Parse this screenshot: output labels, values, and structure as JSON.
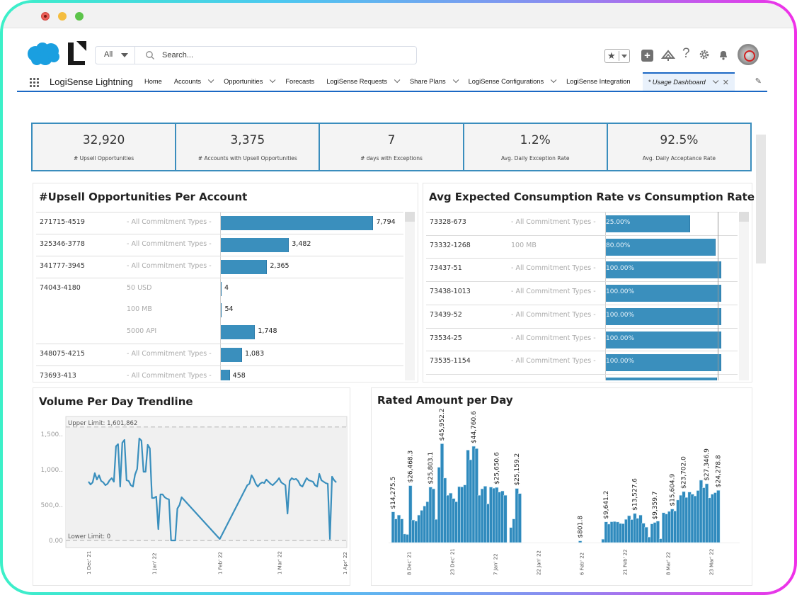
{
  "window": {
    "controls": [
      "close",
      "minimize",
      "maximize"
    ]
  },
  "header": {
    "search_scope": "All",
    "search_placeholder": "Search...",
    "utilities": [
      "favorites-star",
      "favorites-dropdown",
      "global-actions-plus",
      "trailhead",
      "help",
      "setup-gear",
      "notifications-bell",
      "user-avatar"
    ],
    "help_glyph": "?"
  },
  "nav": {
    "app_name": "LogiSense Lightning",
    "items": [
      {
        "label": "Home",
        "dropdown": false
      },
      {
        "label": "Accounts",
        "dropdown": true
      },
      {
        "label": "Opportunities",
        "dropdown": true
      },
      {
        "label": "Forecasts",
        "dropdown": false
      },
      {
        "label": "LogiSense Requests",
        "dropdown": true
      },
      {
        "label": "Share Plans",
        "dropdown": true
      },
      {
        "label": "LogiSense Configurations",
        "dropdown": true
      },
      {
        "label": "LogiSense Integration",
        "dropdown": false
      }
    ],
    "active_tab": {
      "label": "* Usage Dashboard",
      "close": "✕"
    }
  },
  "kpis": [
    {
      "value": "32,920",
      "label": "# Upsell Opportunities"
    },
    {
      "value": "3,375",
      "label": "# Accounts with Upsell Opportunities"
    },
    {
      "value": "7",
      "label": "# days with Exceptions"
    },
    {
      "value": "1.2%",
      "label": "Avg. Daily Exception Rate"
    },
    {
      "value": "92.5%",
      "label": "Avg. Daily Acceptance Rate"
    }
  ],
  "colors": {
    "accent": "#3a8fbd",
    "nav_active": "#1b68c4",
    "kpi_border": "#3a8dbd"
  },
  "chart_data": [
    {
      "type": "bar",
      "orientation": "horizontal",
      "title": "#Upsell Opportunities Per Account",
      "rows": [
        {
          "account": "271715-4519",
          "commitment": "- All Commitment Types -",
          "value": 7794,
          "label": "7,794"
        },
        {
          "account": "325346-3778",
          "commitment": "- All Commitment Types -",
          "value": 3482,
          "label": "3,482"
        },
        {
          "account": "341777-3945",
          "commitment": "- All Commitment Types -",
          "value": 2365,
          "label": "2,365"
        },
        {
          "account": "74043-4180",
          "commitment": "50 USD",
          "value": 4,
          "label": "4"
        },
        {
          "account": "",
          "commitment": "100 MB",
          "value": 54,
          "label": "54"
        },
        {
          "account": "",
          "commitment": "5000 API",
          "value": 1748,
          "label": "1,748"
        },
        {
          "account": "348075-4215",
          "commitment": "- All Commitment Types -",
          "value": 1083,
          "label": "1,083"
        },
        {
          "account": "73693-413",
          "commitment": "- All Commitment Types -",
          "value": 458,
          "label": "458"
        }
      ],
      "xlim": [
        0,
        8500
      ]
    },
    {
      "type": "bar",
      "orientation": "horizontal",
      "title": "Avg Expected Consumption Rate vs Consumption Rate",
      "rows": [
        {
          "account": "73328-673",
          "commitment": "- All Commitment Types -",
          "value": 75,
          "label": "25.00%"
        },
        {
          "account": "73332-1268",
          "commitment": "100 MB",
          "value": 98,
          "label": "80.00%"
        },
        {
          "account": "73437-51",
          "commitment": "- All Commitment Types -",
          "value": 103,
          "label": "100.00%"
        },
        {
          "account": "73438-1013",
          "commitment": "- All Commitment Types -",
          "value": 103,
          "label": "100.00%"
        },
        {
          "account": "73439-52",
          "commitment": "- All Commitment Types -",
          "value": 103,
          "label": "100.00%"
        },
        {
          "account": "73534-25",
          "commitment": "- All Commitment Types -",
          "value": 103,
          "label": "100.00%"
        },
        {
          "account": "73535-1154",
          "commitment": "- All Commitment Types -",
          "value": 103,
          "label": "100.00%"
        },
        {
          "account": "",
          "commitment": "",
          "value": 99,
          "label": ""
        }
      ],
      "reference": 100,
      "xlim": [
        0,
        105
      ]
    },
    {
      "type": "line",
      "title": "Volume Per Day Trendline",
      "y_ticks": [
        "1,500..",
        "1,000..",
        "500,0..",
        "0.00"
      ],
      "y_tick_values": [
        1500000,
        1000000,
        500000,
        0
      ],
      "x_ticks": [
        "1 Dec' 21",
        "1 Jan' 22",
        "1 Feb' 22",
        "1 Mar' 22",
        "1 Apr' 22"
      ],
      "x_tick_days": [
        0,
        31,
        62,
        90,
        121
      ],
      "upper_limit": {
        "label": "Upper Limit: 1,601,862",
        "value": 1601862
      },
      "lower_limit": {
        "label": "Lower Limit: 0",
        "value": 0
      },
      "ylim": [
        -100000,
        1750000
      ],
      "xlim": [
        -6,
        124
      ],
      "points": [
        [
          0,
          830000
        ],
        [
          1,
          790000
        ],
        [
          2,
          820000
        ],
        [
          3,
          950000
        ],
        [
          4,
          860000
        ],
        [
          5,
          920000
        ],
        [
          6,
          840000
        ],
        [
          7,
          820000
        ],
        [
          8,
          780000
        ],
        [
          9,
          800000
        ],
        [
          10,
          850000
        ],
        [
          11,
          880000
        ],
        [
          12,
          830000
        ],
        [
          13,
          1330000
        ],
        [
          14,
          1360000
        ],
        [
          15,
          760000
        ],
        [
          16,
          1380000
        ],
        [
          17,
          1420000
        ],
        [
          18,
          850000
        ],
        [
          19,
          840000
        ],
        [
          20,
          780000
        ],
        [
          21,
          760000
        ],
        [
          22,
          930000
        ],
        [
          23,
          1010000
        ],
        [
          24,
          1440000
        ],
        [
          25,
          1410000
        ],
        [
          26,
          970000
        ],
        [
          27,
          970000
        ],
        [
          28,
          1350000
        ],
        [
          29,
          1300000
        ],
        [
          30,
          600000
        ],
        [
          31,
          600000
        ],
        [
          32,
          620000
        ],
        [
          33,
          160000
        ],
        [
          34,
          650000
        ],
        [
          35,
          650000
        ],
        [
          36,
          610000
        ],
        [
          37,
          590000
        ],
        [
          38,
          580000
        ],
        [
          39,
          0
        ],
        [
          40,
          0
        ],
        [
          41,
          0
        ],
        [
          42,
          450000
        ],
        [
          43,
          500000
        ],
        [
          44,
          610000
        ],
        [
          62,
          20000
        ],
        [
          75,
          780000
        ],
        [
          76,
          800000
        ],
        [
          77,
          920000
        ],
        [
          78,
          870000
        ],
        [
          79,
          800000
        ],
        [
          80,
          760000
        ],
        [
          81,
          800000
        ],
        [
          82,
          820000
        ],
        [
          83,
          810000
        ],
        [
          84,
          860000
        ],
        [
          85,
          830000
        ],
        [
          86,
          800000
        ],
        [
          87,
          780000
        ],
        [
          88,
          810000
        ],
        [
          89,
          840000
        ],
        [
          90,
          880000
        ],
        [
          91,
          820000
        ],
        [
          92,
          800000
        ],
        [
          93,
          780000
        ],
        [
          94,
          380000
        ],
        [
          95,
          840000
        ],
        [
          96,
          880000
        ],
        [
          97,
          860000
        ],
        [
          98,
          870000
        ],
        [
          99,
          840000
        ],
        [
          100,
          780000
        ],
        [
          101,
          760000
        ],
        [
          102,
          820000
        ],
        [
          103,
          880000
        ],
        [
          104,
          850000
        ],
        [
          105,
          840000
        ],
        [
          106,
          830000
        ],
        [
          107,
          780000
        ],
        [
          108,
          760000
        ],
        [
          109,
          940000
        ],
        [
          110,
          850000
        ],
        [
          111,
          830000
        ],
        [
          112,
          810000
        ],
        [
          113,
          800000
        ],
        [
          114,
          20000
        ],
        [
          115,
          900000
        ],
        [
          116,
          850000
        ],
        [
          117,
          820000
        ]
      ]
    },
    {
      "type": "bar",
      "title": "Rated Amount per Day",
      "x_ticks": [
        "8 Dec' 21",
        "23 Dec' 21",
        "7 Jan' 22",
        "22 Jan' 22",
        "6 Feb' 22",
        "21 Feb' 22",
        "8 Mar' 22",
        "23 Mar' 22"
      ],
      "x_tick_days": [
        7,
        22,
        37,
        52,
        67,
        82,
        97,
        112
      ],
      "xlim": [
        0,
        122
      ],
      "ylim": [
        0,
        52000
      ],
      "values": [
        [
          1,
          14275.5
        ],
        [
          2,
          11000
        ],
        [
          3,
          12800
        ],
        [
          4,
          11000
        ],
        [
          5,
          4000
        ],
        [
          6,
          3800
        ],
        [
          7,
          26468.3
        ],
        [
          8,
          10500
        ],
        [
          9,
          10000
        ],
        [
          10,
          12800
        ],
        [
          11,
          15000
        ],
        [
          12,
          17000
        ],
        [
          13,
          19000
        ],
        [
          14,
          25803.1
        ],
        [
          15,
          25000
        ],
        [
          16,
          10800
        ],
        [
          17,
          35000
        ],
        [
          18,
          45952.2
        ],
        [
          19,
          30000
        ],
        [
          20,
          22000
        ],
        [
          21,
          23000
        ],
        [
          22,
          20500
        ],
        [
          23,
          19000
        ],
        [
          24,
          26000
        ],
        [
          25,
          25900
        ],
        [
          26,
          26800
        ],
        [
          27,
          43000
        ],
        [
          28,
          38500
        ],
        [
          29,
          44760.6
        ],
        [
          30,
          43700
        ],
        [
          31,
          22000
        ],
        [
          32,
          25000
        ],
        [
          33,
          26200
        ],
        [
          34,
          18000
        ],
        [
          35,
          25800
        ],
        [
          36,
          25300
        ],
        [
          37,
          25650.6
        ],
        [
          38,
          23500
        ],
        [
          39,
          24000
        ],
        [
          40,
          22000
        ],
        [
          42,
          7000
        ],
        [
          43,
          11000
        ],
        [
          44,
          25159.2
        ],
        [
          45,
          22800
        ],
        [
          66,
          801.8
        ],
        [
          74,
          1600
        ],
        [
          75,
          9641.2
        ],
        [
          76,
          8600
        ],
        [
          77,
          9700
        ],
        [
          78,
          9800
        ],
        [
          79,
          9600
        ],
        [
          80,
          8900
        ],
        [
          81,
          8800
        ],
        [
          82,
          10800
        ],
        [
          83,
          12500
        ],
        [
          84,
          10700
        ],
        [
          85,
          13527.6
        ],
        [
          86,
          11300
        ],
        [
          87,
          12800
        ],
        [
          88,
          9000
        ],
        [
          89,
          7200
        ],
        [
          90,
          2600
        ],
        [
          91,
          8700
        ],
        [
          92,
          9359.7
        ],
        [
          93,
          10000
        ],
        [
          94,
          1800
        ],
        [
          95,
          13900
        ],
        [
          96,
          13300
        ],
        [
          97,
          14500
        ],
        [
          98,
          15604.9
        ],
        [
          99,
          14700
        ],
        [
          100,
          19800
        ],
        [
          101,
          22000
        ],
        [
          102,
          23702.0
        ],
        [
          103,
          21000
        ],
        [
          104,
          23500
        ],
        [
          105,
          22500
        ],
        [
          106,
          21700
        ],
        [
          107,
          24200
        ],
        [
          108,
          29000
        ],
        [
          109,
          25500
        ],
        [
          110,
          27346.9
        ],
        [
          111,
          20800
        ],
        [
          112,
          22500
        ],
        [
          113,
          23200
        ],
        [
          114,
          24278.8
        ]
      ],
      "labels": [
        {
          "day": 1,
          "text": "$14,275.5"
        },
        {
          "day": 7,
          "text": "$26,468.3"
        },
        {
          "day": 14,
          "text": "$25,803.1"
        },
        {
          "day": 18,
          "text": "$45,952.2"
        },
        {
          "day": 29,
          "text": "$44,760.6"
        },
        {
          "day": 37,
          "text": "$25,650.6"
        },
        {
          "day": 44,
          "text": "$25,159.2"
        },
        {
          "day": 66,
          "text": "$801.8"
        },
        {
          "day": 75,
          "text": "$9,641.2"
        },
        {
          "day": 85,
          "text": "$13,527.6"
        },
        {
          "day": 92,
          "text": "$9,359.7"
        },
        {
          "day": 98,
          "text": "$15,604.9"
        },
        {
          "day": 102,
          "text": "$23,702.0"
        },
        {
          "day": 110,
          "text": "$27,346.9"
        },
        {
          "day": 114,
          "text": "$24,278.8"
        }
      ]
    }
  ]
}
